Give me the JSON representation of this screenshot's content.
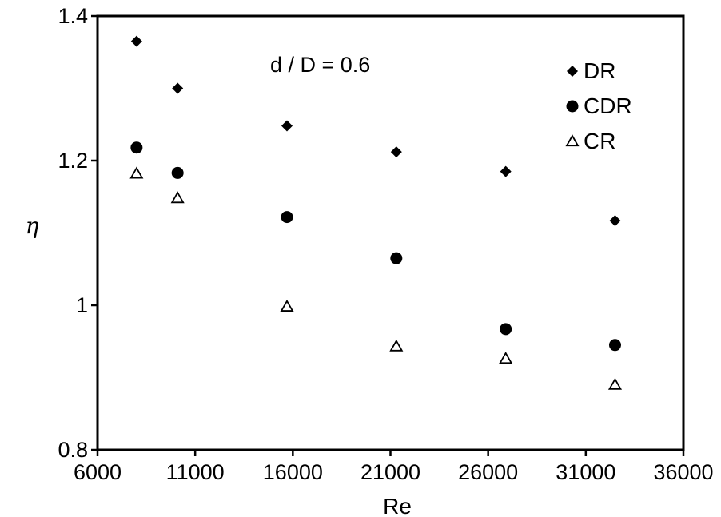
{
  "chart_data": {
    "type": "scatter",
    "title": "",
    "xlabel": "Re",
    "ylabel": "η",
    "xlim": [
      6000,
      36000
    ],
    "ylim": [
      0.8,
      1.4
    ],
    "xticks": [
      "6000",
      "11000",
      "16000",
      "21000",
      "26000",
      "31000",
      "36000"
    ],
    "yticks": [
      "0.8",
      "1",
      "1.2",
      "1.4"
    ],
    "annotation": "d / D = 0.6",
    "grid": false,
    "legend_position": "top-right",
    "series": [
      {
        "name": "DR",
        "marker": "diamond",
        "x": [
          8000,
          10100,
          15700,
          21300,
          26900,
          32500
        ],
        "y": [
          1.365,
          1.3,
          1.248,
          1.212,
          1.185,
          1.117
        ]
      },
      {
        "name": "CDR",
        "marker": "circle",
        "x": [
          8000,
          10100,
          15700,
          21300,
          26900,
          32500
        ],
        "y": [
          1.218,
          1.183,
          1.122,
          1.065,
          0.967,
          0.945
        ]
      },
      {
        "name": "CR",
        "marker": "triangle-open",
        "x": [
          8000,
          10100,
          15700,
          21300,
          26900,
          32500
        ],
        "y": [
          1.182,
          1.148,
          0.998,
          0.943,
          0.926,
          0.89
        ]
      }
    ]
  }
}
